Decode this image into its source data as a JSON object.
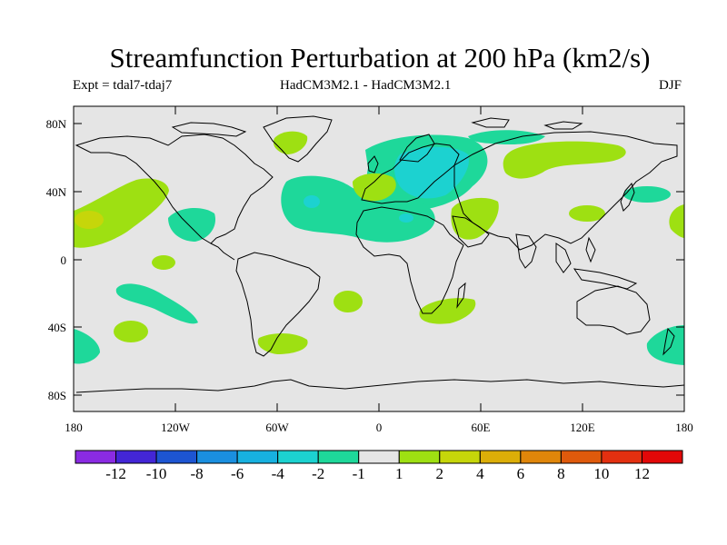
{
  "title": "Streamfunction Perturbation at 200 hPa (km2/s)",
  "subtitle": {
    "left": "Expt = tdal7-tdaj7",
    "center": "HadCM3M2.1 - HadCM3M2.1",
    "right": "DJF"
  },
  "axes": {
    "y_ticks": [
      "80N",
      "40N",
      "0",
      "40S",
      "80S"
    ],
    "x_ticks": [
      "180",
      "120W",
      "60W",
      "0",
      "60E",
      "120E",
      "180"
    ]
  },
  "colorbar": {
    "labels": [
      "-12",
      "-10",
      "-8",
      "-6",
      "-4",
      "-2",
      "-1",
      "1",
      "2",
      "4",
      "6",
      "8",
      "10",
      "12"
    ],
    "colors": [
      "#8a2be2",
      "#4326d6",
      "#1d55d2",
      "#1a8fe0",
      "#17b1e0",
      "#1cd2d0",
      "#1ed89a",
      "#e5e5e5",
      "#9ee012",
      "#c6d60a",
      "#dcae08",
      "#e0860a",
      "#df5a0c",
      "#e33010",
      "#e20808"
    ]
  }
}
